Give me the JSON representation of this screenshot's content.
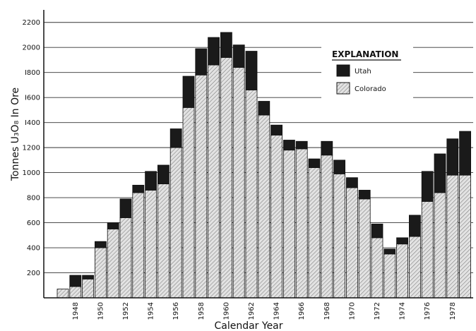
{
  "chart_data": {
    "type": "bar",
    "stacked": true,
    "title": "",
    "xlabel": "Calendar Year",
    "ylabel": "Tonnes U₃O₈ In Ore",
    "ylim": [
      0,
      2300
    ],
    "yticks": [
      200,
      400,
      600,
      800,
      1000,
      1200,
      1400,
      1600,
      1800,
      2000,
      2200
    ],
    "ytick_labels": [
      "200",
      "400",
      "600",
      "800",
      "1000",
      "1200",
      "I400",
      "I600",
      "I800",
      "2000",
      "2200"
    ],
    "categories": [
      "1947",
      "1948",
      "1949",
      "1950",
      "1951",
      "1952",
      "1953",
      "1954",
      "1955",
      "1956",
      "1957",
      "1958",
      "1959",
      "1960",
      "1961",
      "1962",
      "1963",
      "1964",
      "1965",
      "1966",
      "1967",
      "1968",
      "1969",
      "1970",
      "1971",
      "1972",
      "1973",
      "1974",
      "1975",
      "1976",
      "1977",
      "1978",
      "1979"
    ],
    "xtick_labels": [
      "",
      "1948",
      "",
      "1950",
      "",
      "1952",
      "",
      "1954",
      "",
      "1956",
      "",
      "1958",
      "",
      "1960",
      "",
      "1962",
      "",
      "1964",
      "",
      "1966",
      "",
      "1968",
      "",
      "1970",
      "",
      "1972",
      "",
      "1974",
      "",
      "1976",
      "",
      "1978",
      ""
    ],
    "series": [
      {
        "name": "Colorado",
        "color": "#dcdcdc",
        "values": [
          70,
          90,
          150,
          400,
          550,
          640,
          840,
          860,
          910,
          1200,
          1520,
          1780,
          1860,
          1920,
          1840,
          1660,
          1460,
          1300,
          1180,
          1190,
          1040,
          1140,
          990,
          880,
          790,
          480,
          350,
          430,
          490,
          770,
          840,
          980,
          980
        ]
      },
      {
        "name": "Utah",
        "color": "#1a1a1a",
        "values": [
          0,
          90,
          30,
          50,
          50,
          150,
          60,
          150,
          150,
          150,
          250,
          210,
          220,
          200,
          180,
          310,
          110,
          80,
          80,
          60,
          70,
          110,
          110,
          80,
          70,
          110,
          40,
          50,
          170,
          240,
          310,
          290,
          350
        ]
      }
    ],
    "grid": "horizontal",
    "legend": {
      "title": "EXPLANATION",
      "position": "top-right"
    }
  }
}
